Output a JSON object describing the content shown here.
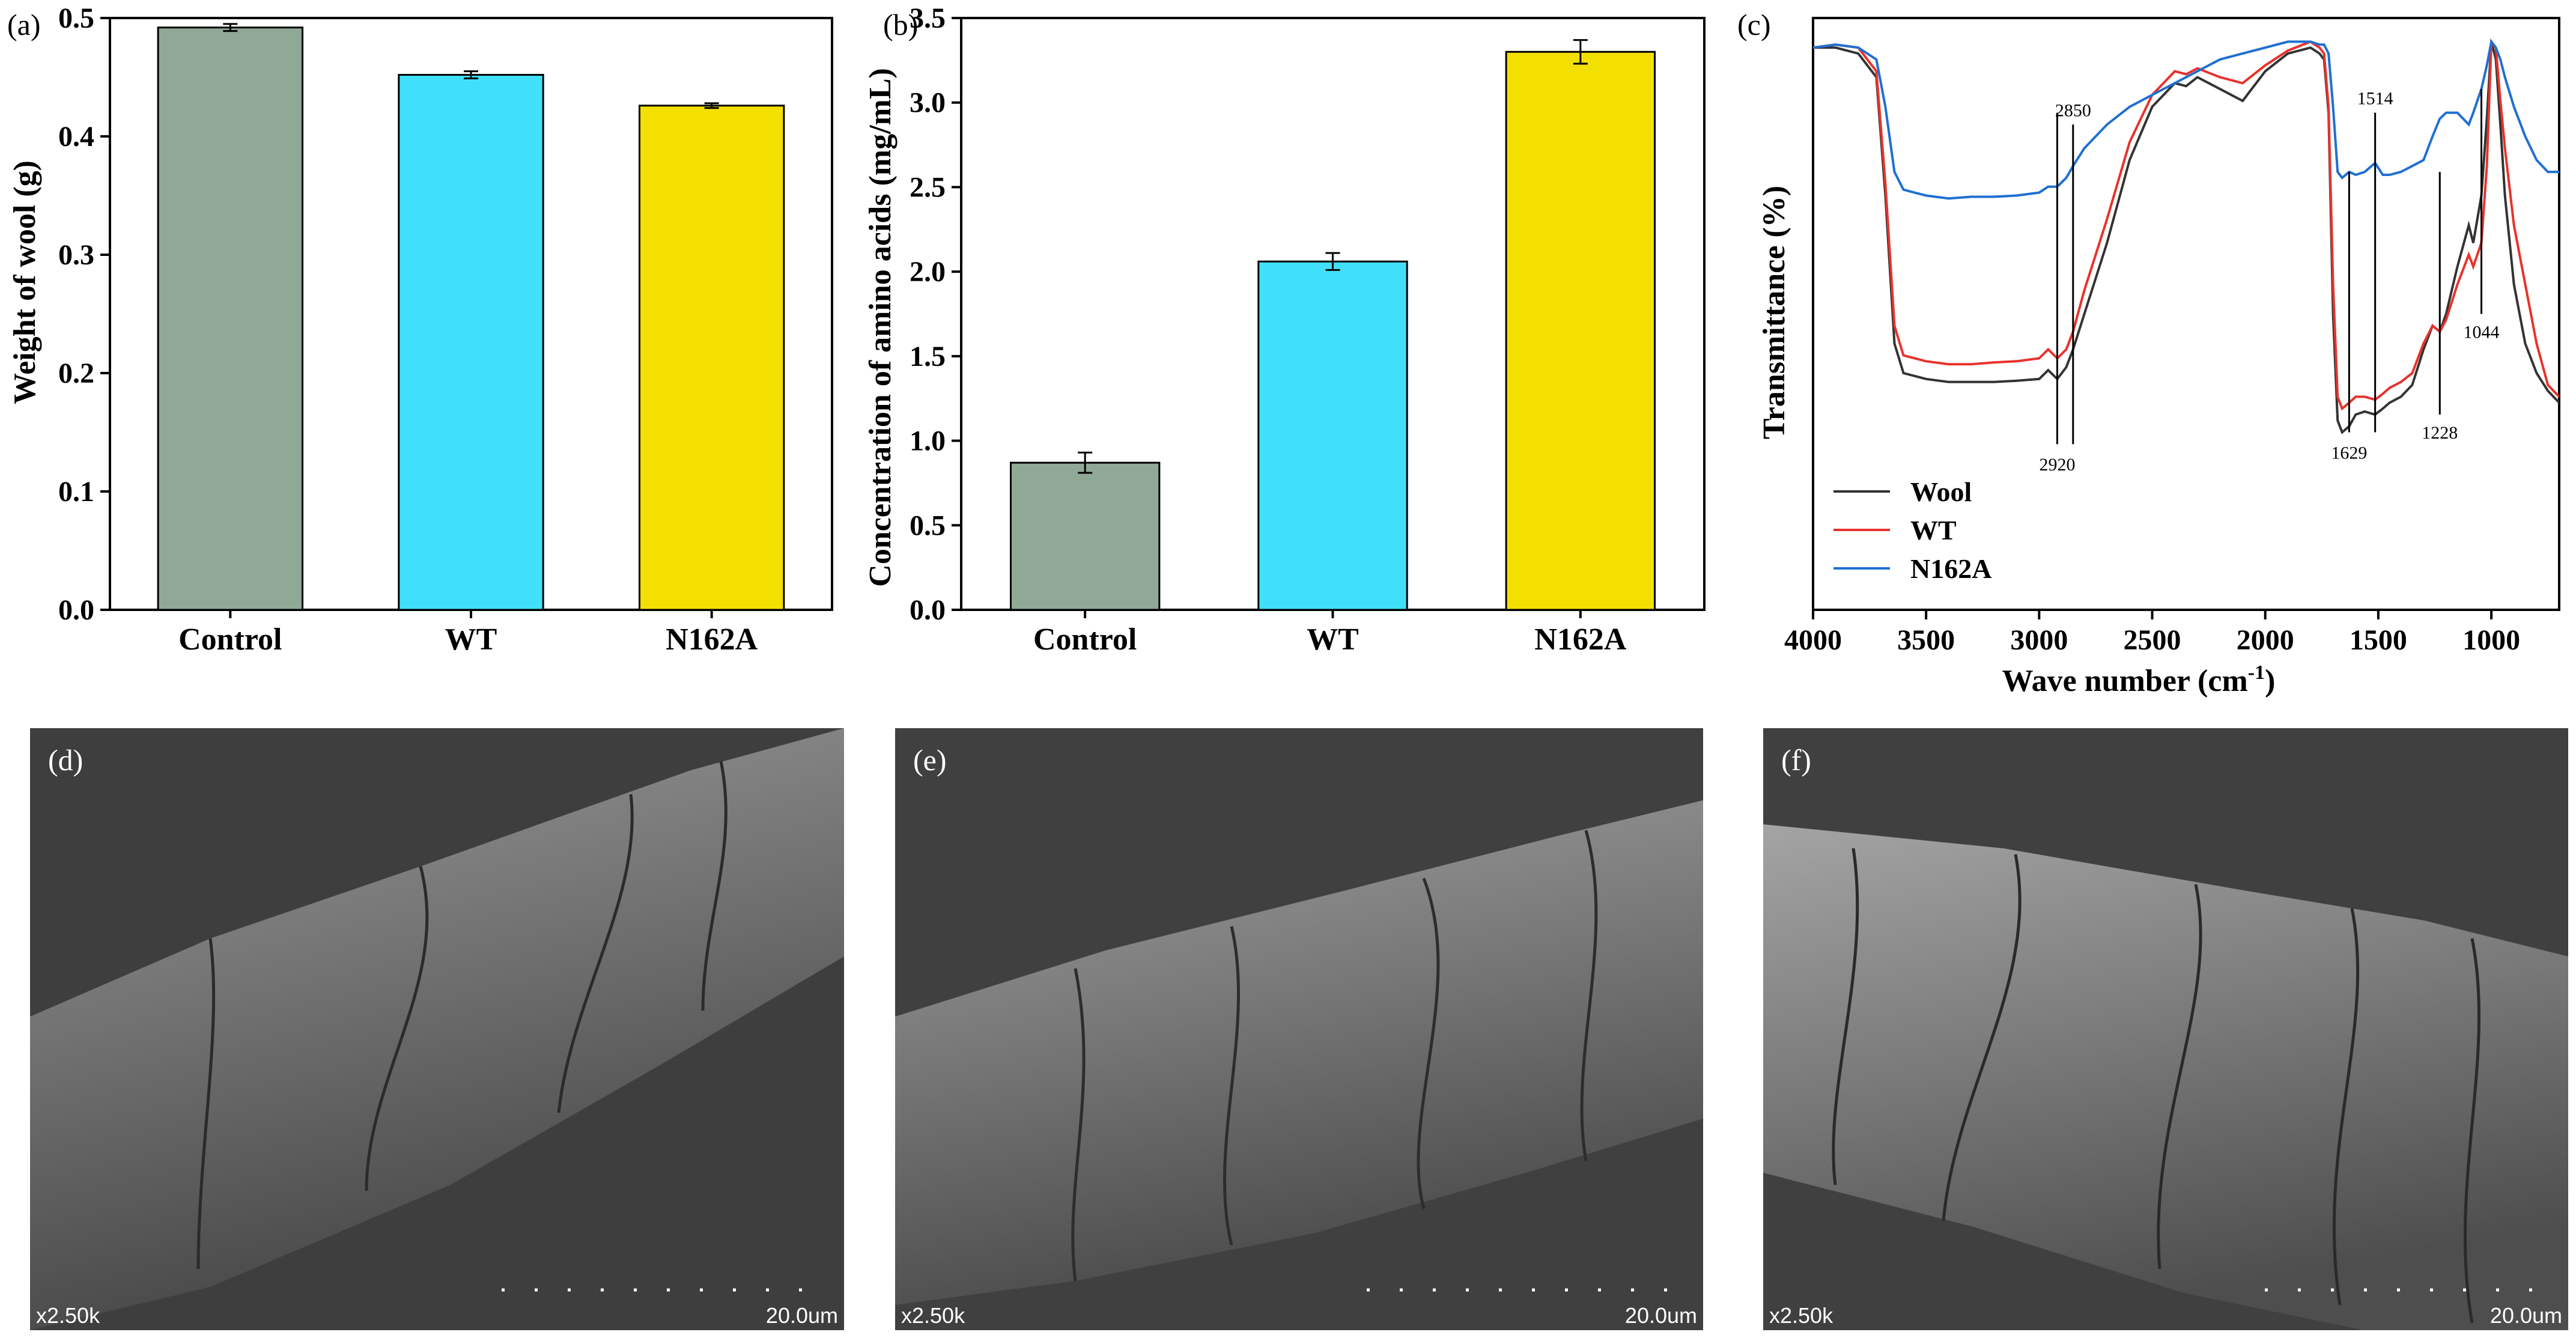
{
  "chart_data": [
    {
      "id": "a",
      "type": "bar",
      "panel_label": "(a)",
      "categories": [
        "Control",
        "WT",
        "N162A"
      ],
      "values": [
        0.492,
        0.452,
        0.426
      ],
      "errors": [
        0.003,
        0.003,
        0.002
      ],
      "colors": [
        "#8fa996",
        "#40e0fb",
        "#f3e000"
      ],
      "ylabel": "Weight of wool (g)",
      "xlabel": "",
      "ylim": [
        0,
        0.5
      ],
      "yticks": [
        "0.0",
        "0.1",
        "0.2",
        "0.3",
        "0.4",
        "0.5"
      ]
    },
    {
      "id": "b",
      "type": "bar",
      "panel_label": "(b)",
      "categories": [
        "Control",
        "WT",
        "N162A"
      ],
      "values": [
        0.87,
        2.06,
        3.3
      ],
      "errors": [
        0.06,
        0.05,
        0.07
      ],
      "colors": [
        "#8fa996",
        "#40e0fb",
        "#f3e000"
      ],
      "ylabel": "Concentration of amino acids (mg/mL)",
      "xlabel": "",
      "ylim": [
        0,
        3.5
      ],
      "yticks": [
        "0.0",
        "0.5",
        "1.0",
        "1.5",
        "2.0",
        "2.5",
        "3.0",
        "3.5"
      ]
    },
    {
      "id": "c",
      "type": "line",
      "panel_label": "(c)",
      "xlabel": "Wave number (cm",
      "xlabel_sup": "-1",
      "xlabel_close": ")",
      "ylabel": "Transmittance (%)",
      "xlim": [
        4000,
        700
      ],
      "ylim": [
        0,
        100
      ],
      "xticks": [
        "4000",
        "3500",
        "3000",
        "2500",
        "2000",
        "1500",
        "1000"
      ],
      "xtick_values": [
        4000,
        3500,
        3000,
        2500,
        2000,
        1500,
        1000
      ],
      "series": [
        {
          "name": "Wool",
          "color": "#333333",
          "x": [
            4000,
            3900,
            3800,
            3720,
            3680,
            3640,
            3600,
            3500,
            3400,
            3300,
            3200,
            3100,
            3000,
            2960,
            2920,
            2880,
            2850,
            2800,
            2700,
            2600,
            2500,
            2400,
            2350,
            2300,
            2200,
            2100,
            2000,
            1900,
            1800,
            1760,
            1740,
            1720,
            1700,
            1680,
            1660,
            1629,
            1600,
            1560,
            1514,
            1480,
            1450,
            1400,
            1350,
            1300,
            1260,
            1228,
            1200,
            1150,
            1100,
            1080,
            1044,
            1020,
            1000,
            980,
            960,
            940,
            900,
            850,
            800,
            750,
            700
          ],
          "y": [
            95,
            95,
            94,
            90,
            70,
            45,
            40,
            39,
            38.5,
            38.5,
            38.5,
            38.7,
            39,
            40.5,
            39,
            41,
            44,
            50,
            62,
            76,
            85,
            89,
            88.5,
            90,
            88,
            86,
            91,
            94,
            95,
            94,
            93,
            84,
            50,
            32,
            30,
            31,
            33,
            33.5,
            33,
            34,
            35,
            36,
            38,
            44,
            48,
            47,
            50,
            58,
            65,
            62,
            70,
            83,
            96,
            93,
            82,
            70,
            55,
            45,
            40,
            37,
            35
          ]
        },
        {
          "name": "WT",
          "color": "#e8322c",
          "x": [
            4000,
            3900,
            3800,
            3720,
            3680,
            3640,
            3600,
            3500,
            3400,
            3300,
            3200,
            3100,
            3000,
            2960,
            2920,
            2880,
            2850,
            2800,
            2700,
            2600,
            2500,
            2400,
            2350,
            2300,
            2200,
            2100,
            2000,
            1900,
            1800,
            1760,
            1740,
            1720,
            1700,
            1680,
            1660,
            1629,
            1600,
            1560,
            1514,
            1480,
            1450,
            1400,
            1350,
            1300,
            1260,
            1228,
            1200,
            1150,
            1100,
            1080,
            1044,
            1020,
            1000,
            980,
            960,
            940,
            900,
            850,
            800,
            750,
            700
          ],
          "y": [
            95,
            95.5,
            95,
            91,
            72,
            48,
            43,
            42,
            41.5,
            41.5,
            41.8,
            42,
            42.5,
            44,
            42.5,
            44,
            47,
            54,
            66,
            79,
            87,
            91,
            90.5,
            91.5,
            90,
            89,
            92,
            94.5,
            96,
            95,
            94,
            85,
            55,
            36,
            34,
            35,
            36,
            36,
            35.5,
            36.5,
            37.5,
            38.5,
            40,
            45,
            48,
            47,
            49,
            55,
            60,
            58,
            62,
            75,
            96,
            95,
            86,
            78,
            65,
            55,
            45,
            38,
            36
          ]
        },
        {
          "name": "N162A",
          "color": "#1f6fd1",
          "x": [
            4000,
            3900,
            3800,
            3720,
            3680,
            3640,
            3600,
            3500,
            3400,
            3300,
            3200,
            3100,
            3000,
            2960,
            2920,
            2880,
            2850,
            2800,
            2700,
            2600,
            2500,
            2400,
            2300,
            2200,
            2100,
            2000,
            1900,
            1800,
            1760,
            1740,
            1720,
            1700,
            1680,
            1660,
            1629,
            1600,
            1560,
            1514,
            1480,
            1450,
            1400,
            1350,
            1300,
            1260,
            1228,
            1200,
            1150,
            1100,
            1080,
            1044,
            1020,
            1000,
            980,
            960,
            940,
            900,
            850,
            800,
            750,
            700
          ],
          "y": [
            95,
            95.5,
            95,
            93,
            85,
            74,
            71,
            70,
            69.5,
            69.8,
            69.8,
            70,
            70.5,
            71.5,
            71.5,
            73,
            75,
            78,
            82,
            85,
            87,
            89,
            91,
            93,
            94,
            95,
            96,
            96,
            95.5,
            95.5,
            94,
            85,
            74,
            73,
            74,
            73.5,
            74,
            75.5,
            73.5,
            73.5,
            74,
            75,
            76,
            80,
            83,
            84,
            84,
            82,
            84,
            88,
            92,
            96,
            95,
            93,
            90,
            85,
            80,
            76,
            74,
            74
          ]
        }
      ],
      "annotations": [
        {
          "label": "2920",
          "wn": 2920,
          "side": "below"
        },
        {
          "label": "2850",
          "wn": 2850,
          "side": "above"
        },
        {
          "label": "1629",
          "wn": 1629,
          "side": "below"
        },
        {
          "label": "1514",
          "wn": 1514,
          "side": "above"
        },
        {
          "label": "1228",
          "wn": 1228,
          "side": "below"
        },
        {
          "label": "1044",
          "wn": 1044,
          "side": "below"
        }
      ]
    }
  ],
  "sem_images": [
    {
      "label": "(d)",
      "magnification": "x2.50k",
      "scale": "20.0um"
    },
    {
      "label": "(e)",
      "magnification": "x2.50k",
      "scale": "20.0um"
    },
    {
      "label": "(f)",
      "magnification": "x2.50k",
      "scale": "20.0um"
    }
  ]
}
